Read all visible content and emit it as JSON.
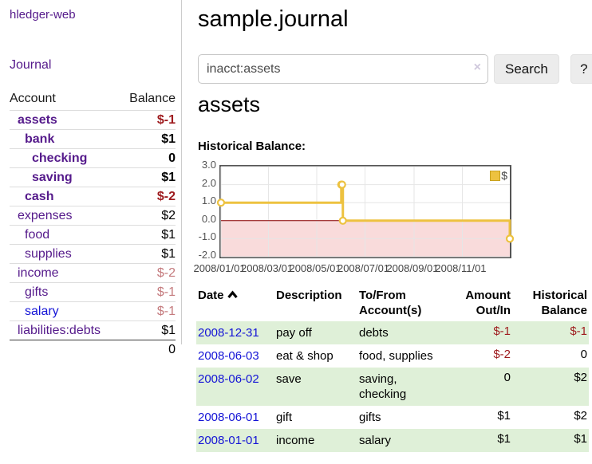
{
  "colors": {
    "link_purple": "#551A8B",
    "link_blue": "#1414d6",
    "negative_strong": "#9e1b1e",
    "negative_soft": "#c47a7d",
    "row_stripe_green": "#dff0d8",
    "series_gold": "#edc240"
  },
  "sidebar": {
    "brand": "hledger-web",
    "nav": {
      "journal_label": "Journal"
    },
    "accounts_table": {
      "headers": {
        "account": "Account",
        "balance": "Balance"
      },
      "rows": [
        {
          "label": "assets",
          "indent": 0,
          "bold": true,
          "color": "purple",
          "balance": "$-1",
          "balance_tone": "neg-strong"
        },
        {
          "label": "bank",
          "indent": 1,
          "bold": true,
          "color": "purple",
          "balance": "$1",
          "balance_tone": null
        },
        {
          "label": "checking",
          "indent": 2,
          "bold": true,
          "color": "purple",
          "balance": "0",
          "balance_tone": null
        },
        {
          "label": "saving",
          "indent": 2,
          "bold": true,
          "color": "purple",
          "balance": "$1",
          "balance_tone": null
        },
        {
          "label": "cash",
          "indent": 1,
          "bold": true,
          "color": "purple",
          "balance": "$-2",
          "balance_tone": "neg-strong"
        },
        {
          "label": "expenses",
          "indent": 0,
          "bold": false,
          "color": "purple",
          "balance": "$2",
          "balance_tone": null
        },
        {
          "label": "food",
          "indent": 1,
          "bold": false,
          "color": "purple",
          "balance": "$1",
          "balance_tone": null
        },
        {
          "label": "supplies",
          "indent": 1,
          "bold": false,
          "color": "purple",
          "balance": "$1",
          "balance_tone": null
        },
        {
          "label": "income",
          "indent": 0,
          "bold": false,
          "color": "purple",
          "balance": "$-2",
          "balance_tone": "neg-soft"
        },
        {
          "label": "gifts",
          "indent": 1,
          "bold": false,
          "color": "purple",
          "balance": "$-1",
          "balance_tone": "neg-soft"
        },
        {
          "label": "salary",
          "indent": 1,
          "bold": false,
          "color": "blue",
          "balance": "$-1",
          "balance_tone": "neg-soft"
        },
        {
          "label": "liabilities:debts",
          "indent": 0,
          "bold": false,
          "color": "purple",
          "balance": "$1",
          "balance_tone": null
        }
      ],
      "total": "0"
    }
  },
  "main": {
    "title": "sample.journal",
    "search": {
      "value": "inacct:assets",
      "clear_icon": "×",
      "search_button": "Search",
      "help_button": "?"
    },
    "account_heading": "assets",
    "chart_title": "Historical Balance:"
  },
  "chart_data": {
    "type": "line",
    "step": true,
    "title": "Historical Balance:",
    "x_range": [
      "2008-01-01",
      "2008-12-31"
    ],
    "ylim": [
      -2.0,
      3.0
    ],
    "x_ticks": [
      "2008/01/01",
      "2008/03/01",
      "2008/05/01",
      "2008/07/01",
      "2008/09/01",
      "2008/11/01"
    ],
    "y_ticks": [
      3.0,
      2.0,
      1.0,
      0.0,
      -1.0,
      -2.0
    ],
    "grid": true,
    "legend_position": "top-right",
    "zero_line_color": "#8b0000",
    "negative_fill": "#f9dbdb",
    "grid_color": "#e6e6e6",
    "series": [
      {
        "name": "$",
        "color": "#edc240",
        "points": [
          [
            "2008-01-01",
            1
          ],
          [
            "2008-06-01",
            2
          ],
          [
            "2008-06-02",
            2
          ],
          [
            "2008-06-03",
            0
          ],
          [
            "2008-12-31",
            -1
          ]
        ]
      }
    ]
  },
  "register": {
    "headers": [
      {
        "label": "Date",
        "align": "left",
        "sortable": true,
        "sort": "asc"
      },
      {
        "label": "Description",
        "align": "left",
        "sortable": false
      },
      {
        "label": "To/From\nAccount(s)",
        "align": "left",
        "sortable": false
      },
      {
        "label": "Amount\nOut/In",
        "align": "right",
        "sortable": false
      },
      {
        "label": "Historical\nBalance",
        "align": "right",
        "sortable": false
      }
    ],
    "rows": [
      {
        "date": "2008-12-31",
        "description": "pay off",
        "accounts": "debts",
        "amount": "$-1",
        "amount_tone": "neg-strong",
        "balance": "$-1",
        "balance_tone": "neg-strong"
      },
      {
        "date": "2008-06-03",
        "description": "eat & shop",
        "accounts": "food, supplies",
        "amount": "$-2",
        "amount_tone": "neg-strong",
        "balance": "0",
        "balance_tone": null
      },
      {
        "date": "2008-06-02",
        "description": "save",
        "accounts": "saving, checking",
        "amount": "0",
        "amount_tone": null,
        "balance": "$2",
        "balance_tone": null
      },
      {
        "date": "2008-06-01",
        "description": "gift",
        "accounts": "gifts",
        "amount": "$1",
        "amount_tone": null,
        "balance": "$2",
        "balance_tone": null
      },
      {
        "date": "2008-01-01",
        "description": "income",
        "accounts": "salary",
        "amount": "$1",
        "amount_tone": null,
        "balance": "$1",
        "balance_tone": null
      }
    ]
  }
}
